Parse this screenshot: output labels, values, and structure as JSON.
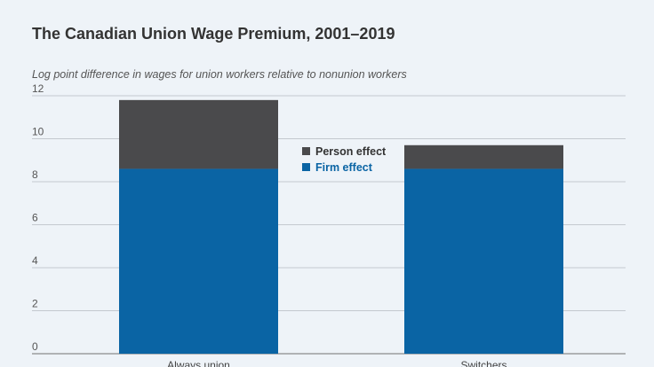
{
  "chart_data": {
    "type": "bar",
    "stacked": true,
    "title": "The Canadian Union Wage Premium, 2001–2019",
    "subtitle": "Log point difference in wages for union workers relative to nonunion workers",
    "categories": [
      "Always union",
      "Switchers"
    ],
    "series": [
      {
        "name": "Firm effect",
        "values": [
          8.6,
          8.6
        ],
        "color": "#0a64a4"
      },
      {
        "name": "Person effect",
        "values": [
          3.2,
          1.1
        ],
        "color": "#4a4a4c"
      }
    ],
    "yticks": [
      0,
      2,
      4,
      6,
      8,
      10,
      12
    ],
    "ylim": [
      0,
      12
    ],
    "grid": true,
    "legend_position": "center",
    "legend_order": [
      "Person effect",
      "Firm effect"
    ],
    "legend_text_colors": {
      "Person effect": "#333333",
      "Firm effect": "#0a64a4"
    }
  }
}
